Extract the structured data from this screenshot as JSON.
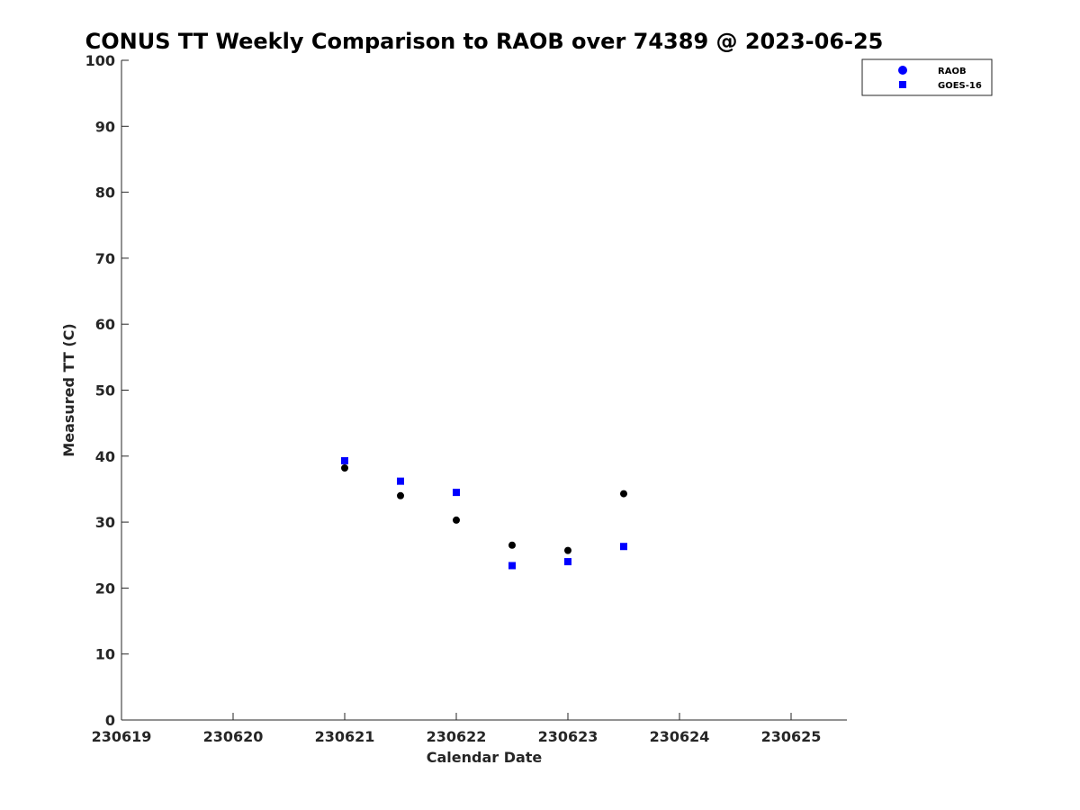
{
  "chart_data": {
    "type": "scatter",
    "title": "CONUS TT Weekly Comparison to RAOB over 74389 @ 2023-06-25",
    "xlabel": "Calendar Date",
    "ylabel": "Measured TT (C)",
    "xlim": [
      230619,
      230625.5
    ],
    "ylim": [
      0,
      100
    ],
    "xticks": [
      230619,
      230620,
      230621,
      230622,
      230623,
      230624,
      230625
    ],
    "xtick_labels": [
      "230619",
      "230620",
      "230621",
      "230622",
      "230623",
      "230624",
      "230625"
    ],
    "yticks": [
      0,
      10,
      20,
      30,
      40,
      50,
      60,
      70,
      80,
      90,
      100
    ],
    "ytick_labels": [
      "0",
      "10",
      "20",
      "30",
      "40",
      "50",
      "60",
      "70",
      "80",
      "90",
      "100"
    ],
    "grid": false,
    "legend_position": "top-right",
    "series": [
      {
        "name": "RAOB",
        "marker": "circle",
        "color": "#000000",
        "legend_color": "#0000ff",
        "x": [
          230621,
          230621.5,
          230622,
          230622.5,
          230623,
          230623.5
        ],
        "y": [
          38.2,
          34.0,
          30.3,
          26.5,
          25.7,
          34.3
        ]
      },
      {
        "name": "GOES-16",
        "marker": "square",
        "color": "#0000ff",
        "legend_color": "#0000ff",
        "x": [
          230621,
          230621.5,
          230622,
          230622.5,
          230623,
          230623.5
        ],
        "y": [
          39.3,
          36.2,
          34.5,
          23.4,
          24.0,
          26.3
        ]
      }
    ]
  }
}
